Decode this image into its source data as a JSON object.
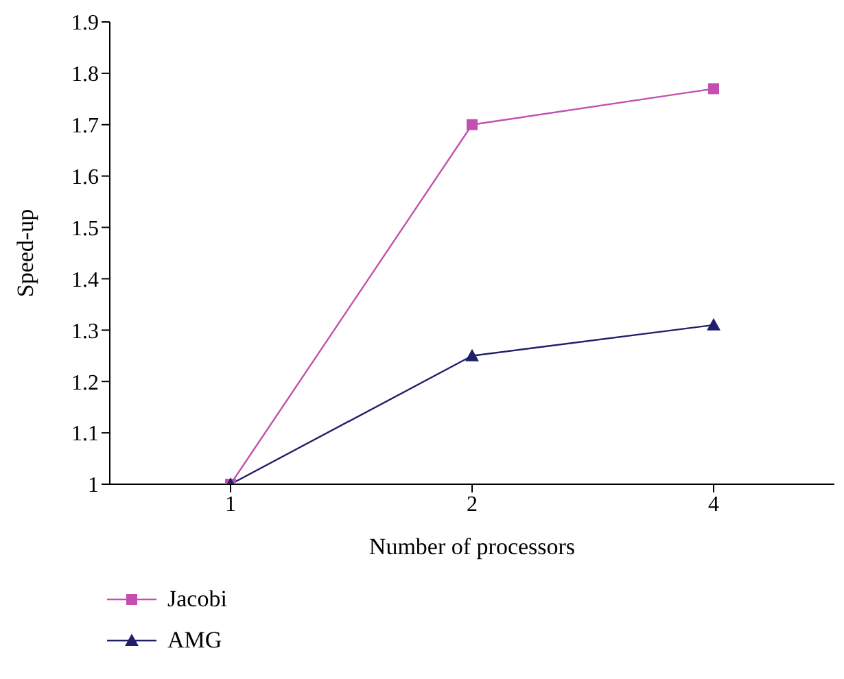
{
  "chart_data": {
    "type": "line",
    "xlabel": "Number of processors",
    "ylabel": "Speed-up",
    "categories": [
      "1",
      "2",
      "4"
    ],
    "series": [
      {
        "name": "Jacobi",
        "color": "#c34fb0",
        "marker": "square",
        "values": [
          1,
          1.7,
          1.77
        ]
      },
      {
        "name": "AMG",
        "color": "#1f1f6b",
        "marker": "triangle",
        "values": [
          1,
          1.25,
          1.31
        ]
      }
    ],
    "ylim": [
      1,
      1.9
    ],
    "yticks": [
      1,
      1.1,
      1.2,
      1.3,
      1.4,
      1.5,
      1.6,
      1.7,
      1.8,
      1.9
    ],
    "grid": false,
    "legend": "bottom left",
    "line_style": "solid"
  }
}
